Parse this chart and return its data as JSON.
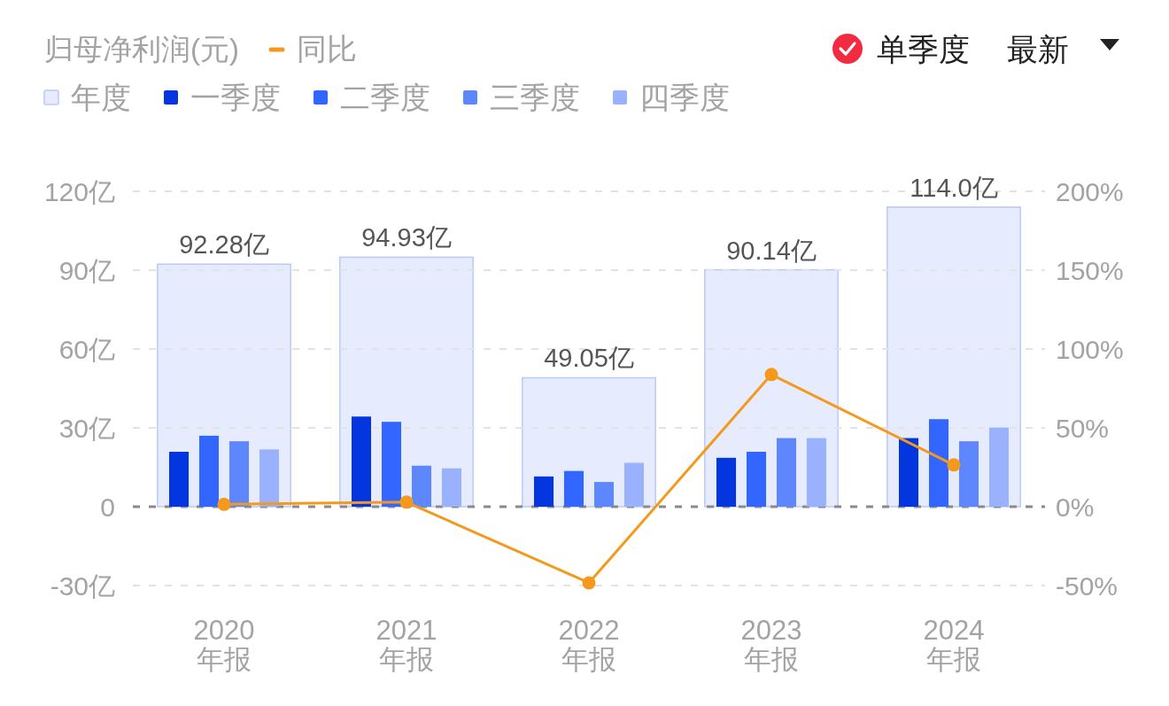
{
  "chart_data": {
    "type": "bar",
    "title": "归母净利润(元)",
    "categories": [
      "2020\n年报",
      "2021\n年报",
      "2022\n年报",
      "2023\n年报",
      "2024\n年报"
    ],
    "series": [
      {
        "name": "年度",
        "color": "#e6ecfd",
        "values": [
          92.28,
          94.93,
          49.05,
          90.14,
          114.0
        ],
        "value_labels": [
          "92.28亿",
          "94.93亿",
          "49.05亿",
          "90.14亿",
          "114.0亿"
        ]
      },
      {
        "name": "一季度",
        "color": "#0336de",
        "values": [
          20.9,
          34.3,
          11.5,
          18.6,
          26.1
        ]
      },
      {
        "name": "二季度",
        "color": "#3366ff",
        "values": [
          27.0,
          32.3,
          13.6,
          20.9,
          33.3
        ]
      },
      {
        "name": "三季度",
        "color": "#5f87fd",
        "values": [
          24.9,
          15.6,
          9.4,
          26.1,
          24.9
        ]
      },
      {
        "name": "四季度",
        "color": "#9ab2fe",
        "values": [
          21.8,
          14.6,
          16.7,
          26.1,
          30.1
        ]
      },
      {
        "name": "同比",
        "type": "line",
        "axis": "y2",
        "color": "#f5991c",
        "values": [
          1.5,
          2.9,
          -48.3,
          83.8,
          26.5
        ]
      }
    ],
    "ylim": [
      -30,
      120
    ],
    "yticks": [
      {
        "value": -30,
        "label": "-30亿"
      },
      0,
      {
        "value": 30,
        "label": "30亿"
      },
      {
        "value": 60,
        "label": "60亿"
      },
      {
        "value": 90,
        "label": "90亿"
      },
      {
        "value": 120,
        "label": "120亿"
      }
    ],
    "y2lim": [
      -50,
      200
    ],
    "y2ticks": [
      {
        "value": -50,
        "label": "-50%"
      },
      {
        "value": 0,
        "label": "0%"
      },
      {
        "value": 50,
        "label": "50%"
      },
      {
        "value": 100,
        "label": "100%"
      },
      {
        "value": 150,
        "label": "150%"
      },
      {
        "value": 200,
        "label": "200%"
      }
    ],
    "ref_lines": [
      {
        "axis": "y",
        "value": 0,
        "color": "#8a8a8a",
        "line_style": "dashed"
      }
    ],
    "grid": "y",
    "legend": "top left",
    "marker": "circle",
    "annotations": [
      "单季度",
      "最新"
    ]
  }
}
